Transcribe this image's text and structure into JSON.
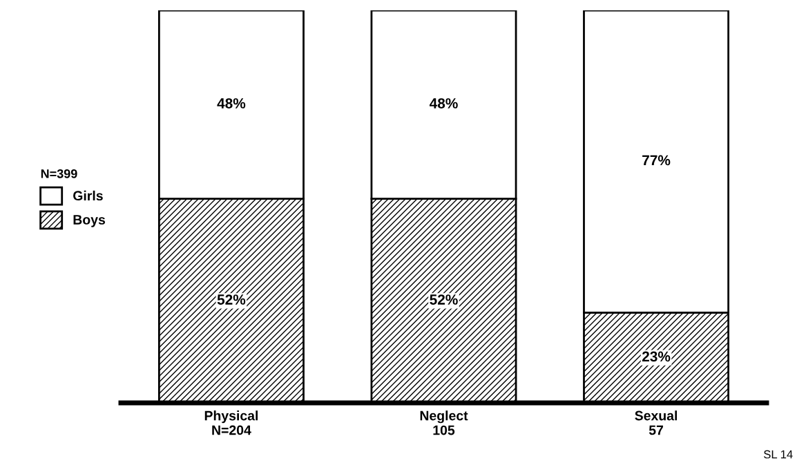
{
  "chart_data": {
    "type": "bar",
    "stacked": true,
    "categories": [
      "Physical\nN=204",
      "Neglect\n105",
      "Sexual\n57"
    ],
    "series": [
      {
        "name": "Boys",
        "color": "#000000",
        "values": [
          52,
          52,
          23
        ],
        "value_labels": [
          "52%",
          "52%",
          "23%"
        ]
      },
      {
        "name": "Girls",
        "color": "#ffffff",
        "values": [
          48,
          48,
          77
        ],
        "value_labels": [
          "48%",
          "48%",
          "77%"
        ]
      }
    ],
    "tick_labels": "x",
    "legend": "left",
    "legend_title": "N=399",
    "annotations": [
      "SL 14"
    ]
  }
}
